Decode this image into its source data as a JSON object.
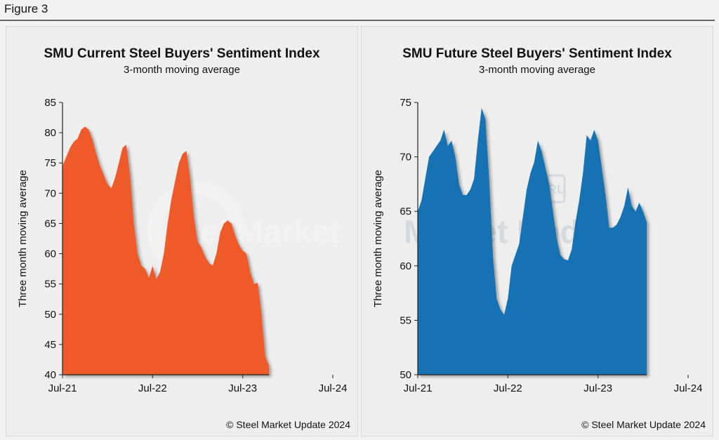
{
  "figure_label": "Figure 3",
  "watermark": {
    "brand": "Steel Market Update",
    "badge": "CRU"
  },
  "chart_data": [
    {
      "type": "area",
      "title": "SMU Current Steel Buyers' Sentiment Index",
      "subtitle": "3-month moving average",
      "ylabel": "Three month moving average",
      "xlabel": "",
      "copyright": "© Steel Market Update 2024",
      "color": "#ee5a2a",
      "ylim": [
        40,
        85
      ],
      "yticks": [
        40,
        45,
        50,
        55,
        60,
        65,
        70,
        75,
        80,
        85
      ],
      "xticks": [
        {
          "label": "Jul-21",
          "index": 0
        },
        {
          "label": "Jul-22",
          "index": 24
        },
        {
          "label": "Jul-23",
          "index": 48
        },
        {
          "label": "Jul-24",
          "index": 72
        }
      ],
      "series": [
        {
          "values": [
            74.5,
            76,
            77.5,
            78.5,
            79,
            80.5,
            81,
            80.5,
            78.8,
            76.5,
            74.5,
            73,
            71.5,
            70.8,
            72.5,
            75,
            77.5,
            78,
            73,
            65,
            60,
            58,
            57.5,
            56,
            58,
            55.8,
            57,
            60,
            65,
            69,
            72,
            75,
            76.5,
            77,
            72.5,
            66,
            62,
            61,
            59.5,
            58.5,
            58,
            60,
            63.5,
            65,
            65.5,
            65,
            63,
            61.5,
            60.5,
            60,
            57,
            55,
            55.2,
            50,
            43,
            41.5
          ]
        }
      ]
    },
    {
      "type": "area",
      "title": "SMU Future Steel Buyers' Sentiment Index",
      "subtitle": "3-month moving average",
      "ylabel": "Three month moving average",
      "xlabel": "",
      "copyright": "© Steel Market Update 2024",
      "color": "#1372b2",
      "ylim": [
        50,
        75
      ],
      "yticks": [
        50,
        55,
        60,
        65,
        70,
        75
      ],
      "xticks": [
        {
          "label": "Jul-21",
          "index": 0
        },
        {
          "label": "Jul-22",
          "index": 24
        },
        {
          "label": "Jul-23",
          "index": 48
        },
        {
          "label": "Jul-24",
          "index": 72
        }
      ],
      "series": [
        {
          "values": [
            65,
            66,
            68,
            70,
            70.5,
            71,
            71.5,
            72.5,
            71,
            71.5,
            70,
            67.5,
            66.5,
            66.5,
            67,
            68,
            71.5,
            74.5,
            73.5,
            68,
            61,
            57,
            56,
            55.5,
            57,
            60,
            61,
            62,
            64.5,
            67,
            68.5,
            69.5,
            71.5,
            70.5,
            69,
            67.5,
            65,
            62.5,
            61,
            60.6,
            60.5,
            61.5,
            64,
            66,
            68.5,
            72,
            71.5,
            72.5,
            71.5,
            69,
            66.5,
            63.5,
            63.5,
            63.8,
            64.5,
            65.5,
            67.2,
            65.5,
            65,
            65.8,
            65,
            64
          ]
        }
      ]
    }
  ]
}
